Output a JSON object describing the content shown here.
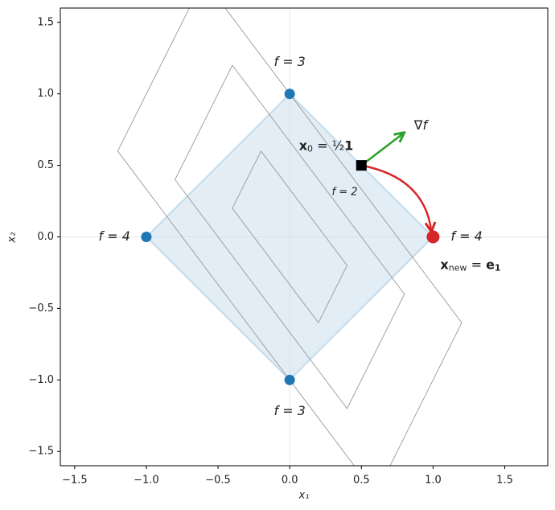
{
  "chart_data": {
    "type": "scatter",
    "xlabel": "x₁",
    "ylabel": "x₂",
    "xlim": [
      -1.6,
      1.8
    ],
    "ylim": [
      -1.6,
      1.6
    ],
    "xticks": [
      {
        "value": -1.5,
        "label": "−1.5"
      },
      {
        "value": -1.0,
        "label": "−1.0"
      },
      {
        "value": -0.5,
        "label": "−0.5"
      },
      {
        "value": 0,
        "label": "0.0"
      },
      0.5,
      {
        "value": 1.0,
        "label": "1.0"
      },
      1.5
    ],
    "yticks": [
      {
        "value": -1.5,
        "label": "−1.5"
      },
      {
        "value": -1.0,
        "label": "−1.0"
      },
      {
        "value": -0.5,
        "label": "−0.5"
      },
      {
        "value": 0,
        "label": "0.0"
      },
      0.5,
      {
        "value": 1.0,
        "label": "1.0"
      },
      1.5
    ],
    "reference_lines": {
      "x": 0,
      "y": 0
    },
    "region": {
      "x": [
        1,
        0,
        -1,
        0
      ],
      "y": [
        0,
        1,
        0,
        -1
      ],
      "color": "#1f77b4"
    },
    "contours": [
      {
        "x": [
          -0.2,
          0.4,
          0.2,
          -0.4
        ],
        "y": [
          0.6,
          -0.2,
          -0.6,
          0.2
        ],
        "label": "f = 2"
      },
      {
        "x": [
          -0.4,
          0.8,
          0.4,
          -0.8
        ],
        "y": [
          1.2,
          -0.4,
          -1.2,
          0.4
        ]
      },
      {
        "x": [
          -0.6,
          1.2,
          0.6,
          -1.2
        ],
        "y": [
          1.8,
          -0.6,
          -1.8,
          0.6
        ]
      }
    ],
    "contour_color": "#999999",
    "points": [
      {
        "x": 0,
        "y": 1,
        "label": "f = 3",
        "color": "#1f77b4"
      },
      {
        "x": 0,
        "y": -1,
        "label": "f = 3",
        "color": "#1f77b4"
      },
      {
        "x": -1,
        "y": 0,
        "label": "f = 4",
        "color": "#1f77b4"
      },
      {
        "x": 1,
        "y": 0,
        "label": "f = 4",
        "color": "#d62728"
      }
    ],
    "start": {
      "x": 0.5,
      "y": 0.5,
      "color": "#000000",
      "label": [
        {
          "t": "x",
          "bold": true
        },
        {
          "t": "0",
          "sub": true
        },
        {
          "t": " = ½"
        },
        {
          "t": "1",
          "bold": true
        }
      ]
    },
    "new_point_label": [
      {
        "t": "x",
        "bold": true
      },
      {
        "t": "new",
        "sub": true
      },
      {
        "t": " = "
      },
      {
        "t": "e",
        "bold": true
      },
      {
        "t": "1",
        "sub": true,
        "bold": true
      }
    ],
    "new_point_color": "#d62728",
    "gradient": {
      "x": [
        0.5,
        0.8
      ],
      "y": [
        0.5,
        0.73
      ],
      "color": "#2ca02c",
      "label": "∇f"
    },
    "step": {
      "x": [
        0.5,
        1
      ],
      "y": [
        0.5,
        0
      ],
      "color": "#d62728"
    }
  }
}
